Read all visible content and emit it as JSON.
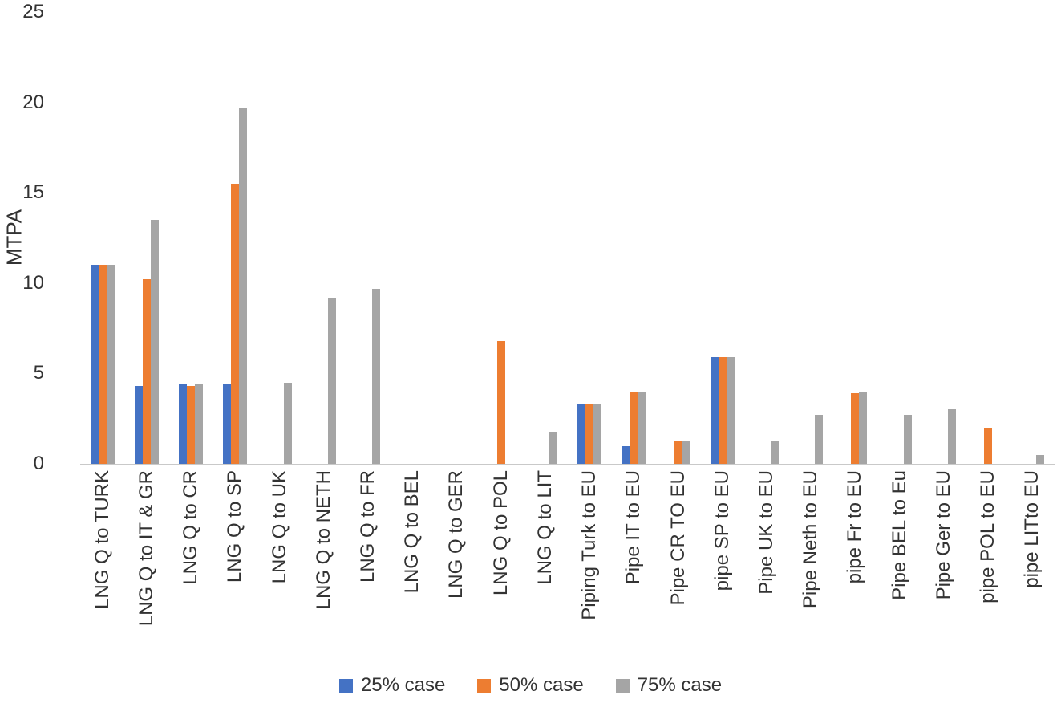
{
  "chart_data": {
    "type": "bar",
    "title": "",
    "xlabel": "",
    "ylabel": "MTPA",
    "ylim": [
      0,
      25
    ],
    "yticks": [
      0,
      5,
      10,
      15,
      20,
      25
    ],
    "grid": false,
    "legend_position": "bottom",
    "categories": [
      "LNG Q to TURK",
      "LNG Q to IT & GR",
      "LNG Q to CR",
      "LNG Q to SP",
      "LNG Q to UK",
      "LNG Q to NETH",
      "LNG Q to FR",
      "LNG Q to BEL",
      "LNG Q to GER",
      "LNG Q to POL",
      "LNG Q to LIT",
      "Piping Turk to EU",
      "Pipe IT to EU",
      "Pipe CR TO EU",
      "pipe SP to EU",
      "Pipe UK to EU",
      "Pipe Neth to EU",
      "pipe Fr to EU",
      "Pipe BEL to Eu",
      "Pipe Ger to EU",
      "pipe POL to EU",
      "pipe  LITto EU"
    ],
    "series": [
      {
        "name": "25% case",
        "color": "#4472C4",
        "values": [
          11.0,
          4.3,
          4.4,
          4.4,
          0,
          0,
          0,
          0,
          0,
          0,
          0,
          3.3,
          1.0,
          0,
          5.9,
          0,
          0,
          0,
          0,
          0,
          0,
          0
        ]
      },
      {
        "name": "50% case",
        "color": "#ED7D31",
        "values": [
          11.0,
          10.2,
          4.3,
          15.5,
          0,
          0,
          0,
          0,
          0,
          6.8,
          0,
          3.3,
          4.0,
          1.3,
          5.9,
          0,
          0,
          3.9,
          0,
          0,
          2.0,
          0
        ]
      },
      {
        "name": "75% case",
        "color": "#A5A5A5",
        "values": [
          11.0,
          13.5,
          4.4,
          19.7,
          4.5,
          9.2,
          9.7,
          0,
          0,
          0,
          1.8,
          3.3,
          4.0,
          1.3,
          5.9,
          1.3,
          2.7,
          4.0,
          2.7,
          3.0,
          0,
          0.5
        ]
      }
    ]
  }
}
